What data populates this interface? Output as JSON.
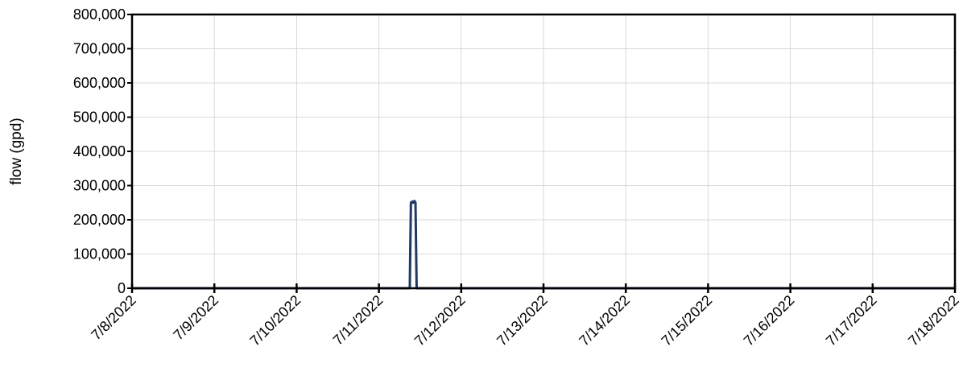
{
  "chart_data": {
    "type": "line",
    "title": "",
    "xlabel": "",
    "ylabel": "flow (gpd)",
    "x_ticks": [
      "7/8/2022",
      "7/9/2022",
      "7/10/2022",
      "7/11/2022",
      "7/12/2022",
      "7/13/2022",
      "7/14/2022",
      "7/15/2022",
      "7/16/2022",
      "7/17/2022",
      "7/18/2022"
    ],
    "y_ticks": [
      "0",
      "100,000",
      "200,000",
      "300,000",
      "400,000",
      "500,000",
      "600,000",
      "700,000",
      "800,000"
    ],
    "xlim": [
      "7/8/2022 00:00",
      "7/18/2022 00:00"
    ],
    "ylim": [
      0,
      800000
    ],
    "grid": true,
    "series": [
      {
        "color": "#1f3864",
        "x": [
          "7/8/2022 00:00",
          "7/11/2022 09:00",
          "7/11/2022 09:20",
          "7/11/2022 09:40",
          "7/11/2022 10:00",
          "7/11/2022 10:20",
          "7/11/2022 10:40",
          "7/11/2022 11:00",
          "7/18/2022 00:00"
        ],
        "y": [
          0,
          0,
          250000,
          253000,
          250000,
          255000,
          250000,
          0,
          0
        ]
      }
    ]
  }
}
